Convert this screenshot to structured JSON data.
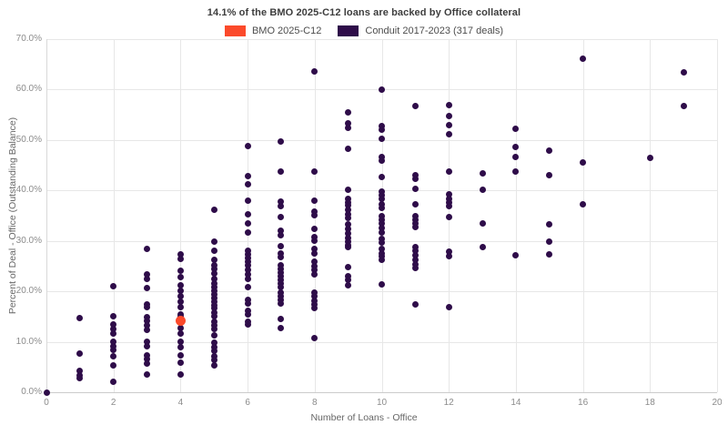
{
  "title": "14.1% of the BMO 2025-C12 loans are backed by Office collateral",
  "legend": {
    "items": [
      {
        "label": "BMO 2025-C12",
        "color": "#fb4a2b"
      },
      {
        "label": "Conduit 2017-2023 (317 deals)",
        "color": "#2e0c49"
      }
    ]
  },
  "colors": {
    "background": "#ffffff",
    "gridline": "#e7e7e7",
    "axis_line": "#cccccc",
    "tick_label": "#8c8c8c",
    "axis_title": "#666666",
    "title": "#3d3d3d",
    "bmo_orange": "#fb4a2b",
    "conduit_purple": "#2e0c49"
  },
  "chart_data": {
    "type": "scatter",
    "title": "14.1% of the BMO 2025-C12 loans are backed by Office collateral",
    "xlabel": "Number of Loans - Office",
    "ylabel": "Percent of Deal - Office (Outstanding Balance)",
    "xlim": [
      0,
      20
    ],
    "ylim": [
      0,
      70
    ],
    "x_ticks": [
      0,
      2,
      4,
      6,
      8,
      10,
      12,
      14,
      16,
      18,
      20
    ],
    "y_ticks": [
      0,
      10,
      20,
      30,
      40,
      50,
      60,
      70
    ],
    "y_tick_labels": [
      "0.0%",
      "10.0%",
      "20.0%",
      "30.0%",
      "40.0%",
      "50.0%",
      "60.0%",
      "70.0%"
    ],
    "grid": "both",
    "legend_position": "top-center",
    "series": [
      {
        "name": "Conduit 2017-2023 (317 deals)",
        "color": "#2e0c49",
        "marker_size": 7,
        "points": [
          [
            0,
            0.0
          ],
          [
            1,
            14.7
          ],
          [
            1,
            7.7
          ],
          [
            1,
            4.2
          ],
          [
            1,
            3.4
          ],
          [
            1,
            2.8
          ],
          [
            2,
            21.1
          ],
          [
            2,
            15.0
          ],
          [
            2,
            13.4
          ],
          [
            2,
            12.5
          ],
          [
            2,
            11.6
          ],
          [
            2,
            10.1
          ],
          [
            2,
            9.2
          ],
          [
            2,
            8.3
          ],
          [
            2,
            7.2
          ],
          [
            2,
            5.4
          ],
          [
            2,
            2.0
          ],
          [
            3,
            28.4
          ],
          [
            3,
            23.4
          ],
          [
            3,
            22.5
          ],
          [
            3,
            20.7
          ],
          [
            3,
            17.5
          ],
          [
            3,
            16.8
          ],
          [
            3,
            14.9
          ],
          [
            3,
            14.1
          ],
          [
            3,
            13.2
          ],
          [
            3,
            12.3
          ],
          [
            3,
            10.1
          ],
          [
            3,
            9.1
          ],
          [
            3,
            7.3
          ],
          [
            3,
            6.5
          ],
          [
            3,
            5.7
          ],
          [
            3,
            3.6
          ],
          [
            4,
            27.4
          ],
          [
            4,
            26.5
          ],
          [
            4,
            24.0
          ],
          [
            4,
            22.8
          ],
          [
            4,
            21.2
          ],
          [
            4,
            20.1
          ],
          [
            4,
            19.0
          ],
          [
            4,
            17.9
          ],
          [
            4,
            16.8
          ],
          [
            4,
            15.5
          ],
          [
            4,
            15.0
          ],
          [
            4,
            12.7
          ],
          [
            4,
            11.6
          ],
          [
            4,
            10.0
          ],
          [
            4,
            9.0
          ],
          [
            4,
            7.3
          ],
          [
            4,
            5.9
          ],
          [
            4,
            3.5
          ],
          [
            5,
            36.2
          ],
          [
            5,
            29.9
          ],
          [
            5,
            28.0
          ],
          [
            5,
            26.3
          ],
          [
            5,
            25.2
          ],
          [
            5,
            24.4
          ],
          [
            5,
            23.6
          ],
          [
            5,
            22.4
          ],
          [
            5,
            21.6
          ],
          [
            5,
            20.9
          ],
          [
            5,
            20.2
          ],
          [
            5,
            19.4
          ],
          [
            5,
            18.6
          ],
          [
            5,
            18.0
          ],
          [
            5,
            17.3
          ],
          [
            5,
            16.6
          ],
          [
            5,
            15.8
          ],
          [
            5,
            15.0
          ],
          [
            5,
            14.0
          ],
          [
            5,
            13.2
          ],
          [
            5,
            12.5
          ],
          [
            5,
            11.3
          ],
          [
            5,
            9.8
          ],
          [
            5,
            8.9
          ],
          [
            5,
            8.2
          ],
          [
            5,
            7.2
          ],
          [
            5,
            6.4
          ],
          [
            5,
            5.3
          ],
          [
            6,
            48.8
          ],
          [
            6,
            42.8
          ],
          [
            6,
            41.2
          ],
          [
            6,
            38.0
          ],
          [
            6,
            35.3
          ],
          [
            6,
            33.5
          ],
          [
            6,
            31.7
          ],
          [
            6,
            28.1
          ],
          [
            6,
            27.4
          ],
          [
            6,
            26.6
          ],
          [
            6,
            25.8
          ],
          [
            6,
            25.1
          ],
          [
            6,
            24.2
          ],
          [
            6,
            23.4
          ],
          [
            6,
            22.4
          ],
          [
            6,
            20.9
          ],
          [
            6,
            18.4
          ],
          [
            6,
            17.6
          ],
          [
            6,
            16.2
          ],
          [
            6,
            15.4
          ],
          [
            6,
            14.0
          ],
          [
            6,
            13.4
          ],
          [
            7,
            49.7
          ],
          [
            7,
            43.8
          ],
          [
            7,
            37.8
          ],
          [
            7,
            36.9
          ],
          [
            7,
            34.7
          ],
          [
            7,
            32.0
          ],
          [
            7,
            31.2
          ],
          [
            7,
            29.0
          ],
          [
            7,
            27.6
          ],
          [
            7,
            26.8
          ],
          [
            7,
            25.2
          ],
          [
            7,
            24.5
          ],
          [
            7,
            23.8
          ],
          [
            7,
            23.0
          ],
          [
            7,
            22.2
          ],
          [
            7,
            21.6
          ],
          [
            7,
            20.8
          ],
          [
            7,
            19.8
          ],
          [
            7,
            19.1
          ],
          [
            7,
            18.4
          ],
          [
            7,
            17.6
          ],
          [
            7,
            14.6
          ],
          [
            7,
            12.8
          ],
          [
            8,
            63.6
          ],
          [
            8,
            43.8
          ],
          [
            8,
            38.0
          ],
          [
            8,
            35.9
          ],
          [
            8,
            35.1
          ],
          [
            8,
            32.3
          ],
          [
            8,
            30.8
          ],
          [
            8,
            30.0
          ],
          [
            8,
            28.4
          ],
          [
            8,
            27.6
          ],
          [
            8,
            25.8
          ],
          [
            8,
            25.0
          ],
          [
            8,
            24.2
          ],
          [
            8,
            23.4
          ],
          [
            8,
            19.8
          ],
          [
            8,
            19.1
          ],
          [
            8,
            18.2
          ],
          [
            8,
            17.4
          ],
          [
            8,
            16.6
          ],
          [
            8,
            10.8
          ],
          [
            9,
            55.5
          ],
          [
            9,
            53.4
          ],
          [
            9,
            52.5
          ],
          [
            9,
            48.2
          ],
          [
            9,
            40.2
          ],
          [
            9,
            38.4
          ],
          [
            9,
            37.7
          ],
          [
            9,
            37.0
          ],
          [
            9,
            36.2
          ],
          [
            9,
            35.3
          ],
          [
            9,
            34.6
          ],
          [
            9,
            33.2
          ],
          [
            9,
            32.4
          ],
          [
            9,
            31.4
          ],
          [
            9,
            30.6
          ],
          [
            9,
            29.9
          ],
          [
            9,
            29.2
          ],
          [
            9,
            28.7
          ],
          [
            9,
            24.8
          ],
          [
            9,
            23.0
          ],
          [
            9,
            22.2
          ],
          [
            9,
            21.2
          ],
          [
            10,
            60.0
          ],
          [
            10,
            52.8
          ],
          [
            10,
            52.0
          ],
          [
            10,
            50.2
          ],
          [
            10,
            46.7
          ],
          [
            10,
            45.9
          ],
          [
            10,
            42.6
          ],
          [
            10,
            39.8
          ],
          [
            10,
            39.0
          ],
          [
            10,
            38.3
          ],
          [
            10,
            37.2
          ],
          [
            10,
            36.5
          ],
          [
            10,
            35.0
          ],
          [
            10,
            34.2
          ],
          [
            10,
            33.4
          ],
          [
            10,
            32.6
          ],
          [
            10,
            31.6
          ],
          [
            10,
            30.4
          ],
          [
            10,
            29.6
          ],
          [
            10,
            28.4
          ],
          [
            10,
            27.6
          ],
          [
            10,
            26.9
          ],
          [
            10,
            26.2
          ],
          [
            10,
            21.4
          ],
          [
            11,
            56.7
          ],
          [
            11,
            43.1
          ],
          [
            11,
            42.3
          ],
          [
            11,
            40.4
          ],
          [
            11,
            37.2
          ],
          [
            11,
            35.0
          ],
          [
            11,
            34.2
          ],
          [
            11,
            33.5
          ],
          [
            11,
            32.8
          ],
          [
            11,
            28.7
          ],
          [
            11,
            28.0
          ],
          [
            11,
            27.2
          ],
          [
            11,
            26.2
          ],
          [
            11,
            25.4
          ],
          [
            11,
            24.6
          ],
          [
            11,
            17.4
          ],
          [
            12,
            57.0
          ],
          [
            12,
            54.8
          ],
          [
            12,
            53.0
          ],
          [
            12,
            51.2
          ],
          [
            12,
            43.7
          ],
          [
            12,
            39.2
          ],
          [
            12,
            38.4
          ],
          [
            12,
            37.7
          ],
          [
            12,
            36.9
          ],
          [
            12,
            34.8
          ],
          [
            12,
            27.8
          ],
          [
            12,
            27.0
          ],
          [
            12,
            16.8
          ],
          [
            13,
            43.4
          ],
          [
            13,
            40.1
          ],
          [
            13,
            33.5
          ],
          [
            13,
            28.8
          ],
          [
            14,
            52.2
          ],
          [
            14,
            48.6
          ],
          [
            14,
            46.7
          ],
          [
            14,
            43.7
          ],
          [
            14,
            27.2
          ],
          [
            15,
            47.9
          ],
          [
            15,
            43.0
          ],
          [
            15,
            33.2
          ],
          [
            15,
            29.8
          ],
          [
            15,
            27.4
          ],
          [
            16,
            66.2
          ],
          [
            16,
            45.5
          ],
          [
            16,
            37.3
          ],
          [
            18,
            46.5
          ],
          [
            19,
            63.4
          ],
          [
            19,
            56.8
          ]
        ]
      },
      {
        "name": "BMO 2025-C12",
        "color": "#fb4a2b",
        "marker_size": 11,
        "points": [
          [
            4,
            14.1
          ]
        ]
      }
    ]
  }
}
